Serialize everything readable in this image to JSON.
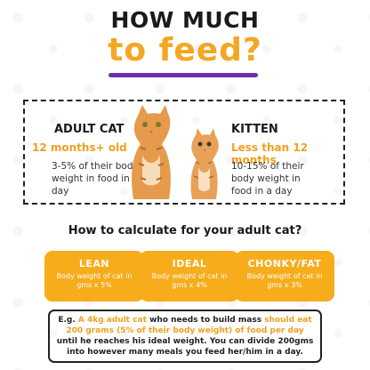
{
  "title": {
    "line1": "HOW MUCH",
    "line2": "to feed?"
  },
  "adult": {
    "heading": "ADULT CAT",
    "age": "12 months+ old",
    "desc": "3-5% of their body weight in food in a day"
  },
  "kitten": {
    "heading": "KITTEN",
    "age": "Less than 12 months",
    "desc": "10-15% of their body weight in food in a day"
  },
  "question": "How to calculate for your adult cat?",
  "cards": [
    {
      "title": "LEAN",
      "desc": "Body weight of cat in gms x 5%"
    },
    {
      "title": "IDEAL",
      "desc": "Body weight of cat in gms x 4%"
    },
    {
      "title": "CHONKY/FAT",
      "desc": "Body weight of cat in gms x 3%"
    }
  ],
  "example": {
    "p1": "E.g. ",
    "p2": "A 4kg adult cat",
    "p3": " who needs to build mass ",
    "p4": "should eat 200 grams (5% of their body weight) of food per day",
    "p5": " until he reaches his ideal weight. You can divide 200gms into however many meals you feed her/him in a day."
  },
  "colors": {
    "accent": "#f7ac1b",
    "underline": "#6b2fa6",
    "text": "#1a1a1a"
  }
}
